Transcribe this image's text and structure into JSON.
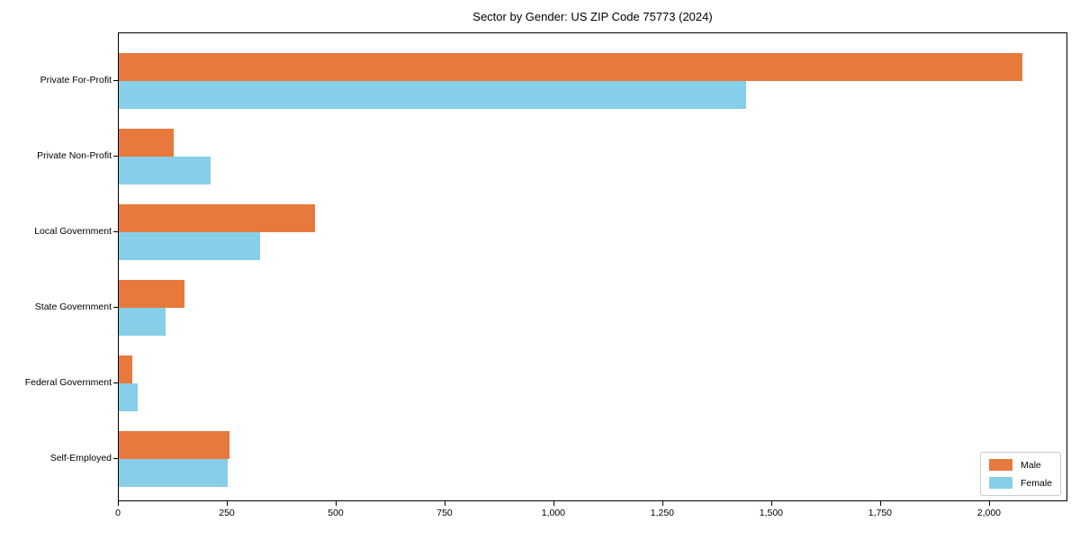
{
  "chart_data": {
    "type": "bar",
    "orientation": "horizontal",
    "title": "Sector by Gender: US ZIP Code 75773 (2024)",
    "categories": [
      "Private For-Profit",
      "Private Non-Profit",
      "Local Government",
      "State Government",
      "Federal Government",
      "Self-Employed"
    ],
    "series": [
      {
        "name": "Male",
        "color": "#e8793d",
        "values": [
          2075,
          125,
          450,
          150,
          30,
          255
        ]
      },
      {
        "name": "Female",
        "color": "#87cee8",
        "values": [
          1440,
          210,
          325,
          107,
          43,
          250
        ]
      }
    ],
    "xlabel": "",
    "ylabel": "",
    "xlim": [
      0,
      2180
    ],
    "xticks": [
      0,
      250,
      500,
      750,
      1000,
      1250,
      1500,
      1750,
      2000
    ],
    "xtick_labels": [
      "0",
      "250",
      "500",
      "750",
      "1,000",
      "1,250",
      "1,500",
      "1,750",
      "2,000"
    ],
    "grid": false,
    "legend": {
      "position": "lower right"
    },
    "axis_color": "#000000",
    "background_color": "#ffffff"
  }
}
